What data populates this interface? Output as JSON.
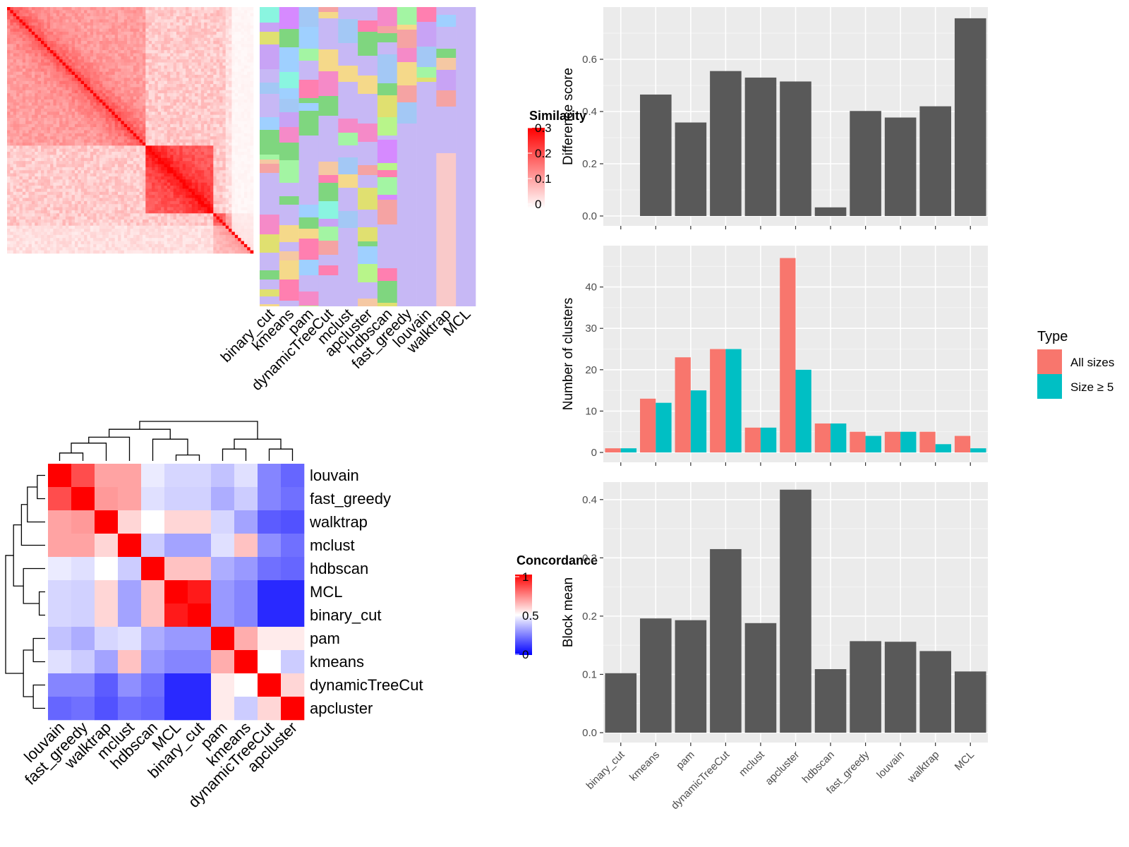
{
  "colors": {
    "panel_bg": "#ebebeb",
    "grid": "#ffffff",
    "bar_dark": "#595959",
    "all_sizes": "#f8766d",
    "size5": "#00bfc4",
    "sim_high": "#ff0000",
    "conc_high": "#ff0000",
    "conc_mid": "#ffffff",
    "conc_low": "#0000ff",
    "default_class": "#c7b8f5"
  },
  "similarity_legend": {
    "title": "Similarity",
    "ticks": [
      "0.3",
      "0.2",
      "0.1",
      "0"
    ]
  },
  "similarity_heatmap": {
    "method_labels": [
      "binary_cut",
      "kmeans",
      "pam",
      "dynamicTreeCut",
      "mclust",
      "apcluster",
      "hdbscan",
      "fast_greedy",
      "louvain",
      "walktrap",
      "MCL"
    ]
  },
  "concordance_legend": {
    "title": "Concordance",
    "ticks": [
      "1",
      "0.5",
      "0"
    ]
  },
  "concordance_heatmap": {
    "row_labels": [
      "louvain",
      "fast_greedy",
      "walktrap",
      "mclust",
      "hdbscan",
      "MCL",
      "binary_cut",
      "pam",
      "kmeans",
      "dynamicTreeCut",
      "apcluster"
    ],
    "col_labels": [
      "louvain",
      "fast_greedy",
      "walktrap",
      "mclust",
      "hdbscan",
      "MCL",
      "binary_cut",
      "pam",
      "kmeans",
      "dynamicTreeCut",
      "apcluster"
    ],
    "matrix": [
      [
        1.0,
        0.85,
        0.68,
        0.68,
        0.46,
        0.42,
        0.42,
        0.38,
        0.44,
        0.26,
        0.2
      ],
      [
        0.85,
        1.0,
        0.7,
        0.68,
        0.44,
        0.41,
        0.41,
        0.34,
        0.4,
        0.26,
        0.22
      ],
      [
        0.68,
        0.7,
        1.0,
        0.58,
        0.5,
        0.58,
        0.58,
        0.42,
        0.32,
        0.18,
        0.16
      ],
      [
        0.68,
        0.68,
        0.58,
        1.0,
        0.4,
        0.32,
        0.32,
        0.44,
        0.62,
        0.28,
        0.22
      ],
      [
        0.46,
        0.44,
        0.5,
        0.4,
        1.0,
        0.62,
        0.62,
        0.34,
        0.3,
        0.22,
        0.2
      ],
      [
        0.42,
        0.41,
        0.58,
        0.32,
        0.62,
        1.0,
        0.95,
        0.3,
        0.26,
        0.08,
        0.08
      ],
      [
        0.42,
        0.41,
        0.58,
        0.32,
        0.62,
        0.95,
        1.0,
        0.3,
        0.26,
        0.08,
        0.08
      ],
      [
        0.38,
        0.34,
        0.42,
        0.44,
        0.34,
        0.3,
        0.3,
        1.0,
        0.66,
        0.54,
        0.54
      ],
      [
        0.44,
        0.4,
        0.32,
        0.62,
        0.3,
        0.26,
        0.26,
        0.66,
        1.0,
        0.5,
        0.4
      ],
      [
        0.26,
        0.26,
        0.18,
        0.28,
        0.22,
        0.08,
        0.08,
        0.54,
        0.5,
        1.0,
        0.58
      ],
      [
        0.2,
        0.22,
        0.16,
        0.22,
        0.2,
        0.08,
        0.08,
        0.54,
        0.4,
        0.58,
        1.0
      ]
    ]
  },
  "chart_data": [
    {
      "type": "bar",
      "ylabel": "Difference score",
      "xlabel": "",
      "categories": [
        "binary_cut",
        "kmeans",
        "pam",
        "dynamicTreeCut",
        "mclust",
        "apcluster",
        "hdbscan",
        "fast_greedy",
        "louvain",
        "walktrap",
        "MCL"
      ],
      "values": [
        0.0,
        0.465,
        0.358,
        0.555,
        0.53,
        0.515,
        0.033,
        0.402,
        0.377,
        0.42,
        0.757
      ],
      "ylim": [
        0,
        0.8
      ],
      "yticks": [
        0.0,
        0.2,
        0.4,
        0.6
      ],
      "ytick_labels": [
        "0.0",
        "0.2",
        "0.4",
        "0.6"
      ]
    },
    {
      "type": "bar",
      "ylabel": "Number of clusters",
      "xlabel": "",
      "categories": [
        "binary_cut",
        "kmeans",
        "pam",
        "dynamicTreeCut",
        "mclust",
        "apcluster",
        "hdbscan",
        "fast_greedy",
        "louvain",
        "walktrap",
        "MCL"
      ],
      "legend": {
        "title": "Type",
        "position": "right"
      },
      "series": [
        {
          "name": "All sizes",
          "values": [
            1,
            13,
            23,
            25,
            6,
            47,
            7,
            5,
            5,
            5,
            4
          ]
        },
        {
          "name": "Size ≥ 5",
          "values": [
            1,
            12,
            15,
            25,
            6,
            20,
            7,
            4,
            5,
            2,
            1
          ]
        }
      ],
      "ylim": [
        0,
        50
      ],
      "yticks": [
        0,
        10,
        20,
        30,
        40
      ],
      "ytick_labels": [
        "0",
        "10",
        "20",
        "30",
        "40"
      ]
    },
    {
      "type": "bar",
      "ylabel": "Block mean",
      "xlabel": "",
      "categories": [
        "binary_cut",
        "kmeans",
        "pam",
        "dynamicTreeCut",
        "mclust",
        "apcluster",
        "hdbscan",
        "fast_greedy",
        "louvain",
        "walktrap",
        "MCL"
      ],
      "values": [
        0.102,
        0.196,
        0.193,
        0.315,
        0.188,
        0.417,
        0.109,
        0.157,
        0.156,
        0.14,
        0.105
      ],
      "ylim": [
        0,
        0.43
      ],
      "yticks": [
        0.0,
        0.1,
        0.2,
        0.3,
        0.4
      ],
      "ytick_labels": [
        "0.0",
        "0.1",
        "0.2",
        "0.3",
        "0.4"
      ]
    }
  ]
}
